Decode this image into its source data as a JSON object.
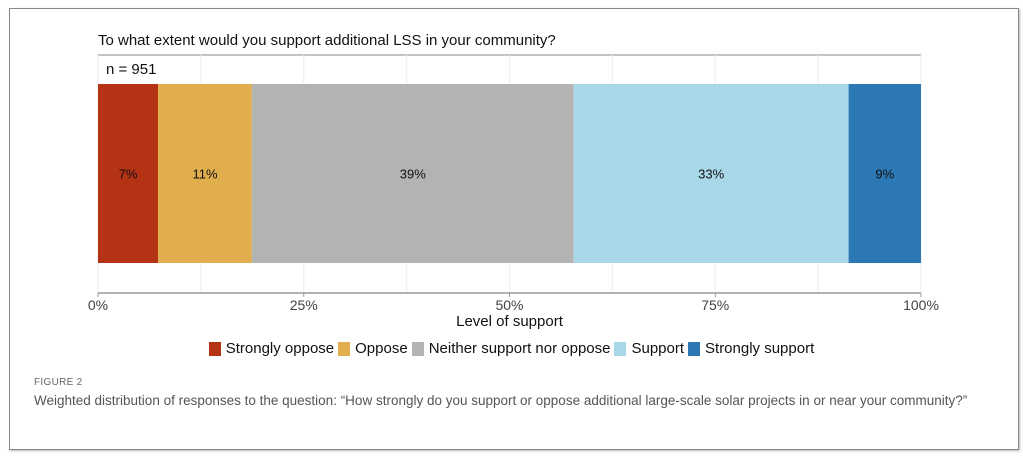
{
  "chart_data": {
    "type": "bar",
    "orientation": "horizontal-stacked",
    "title": "To what extent would you support additional LSS in your community?",
    "annotation": "n = 951",
    "xlabel": "Level of support",
    "xlim": [
      0,
      100
    ],
    "xticks": [
      "0%",
      "25%",
      "50%",
      "75%",
      "100%"
    ],
    "xtick_values": [
      0,
      25,
      50,
      75,
      100
    ],
    "grid": true,
    "legend_position": "bottom",
    "series": [
      {
        "name": "Strongly oppose",
        "value": 7.3,
        "label": "7%",
        "color": "#b53315"
      },
      {
        "name": "Oppose",
        "value": 11.4,
        "label": "11%",
        "color": "#e0ae4c"
      },
      {
        "name": "Neither support nor oppose",
        "value": 39.1,
        "label": "39%",
        "color": "#b3b3b3"
      },
      {
        "name": "Support",
        "value": 33.4,
        "label": "33%",
        "color": "#a8d8e8"
      },
      {
        "name": "Strongly support",
        "value": 8.8,
        "label": "9%",
        "color": "#2b78b5"
      }
    ]
  },
  "figure": {
    "label": "FIGURE 2",
    "caption": "Weighted distribution of responses to the question: “How strongly do you support or oppose additional large-scale solar projects in or near your community?”"
  }
}
